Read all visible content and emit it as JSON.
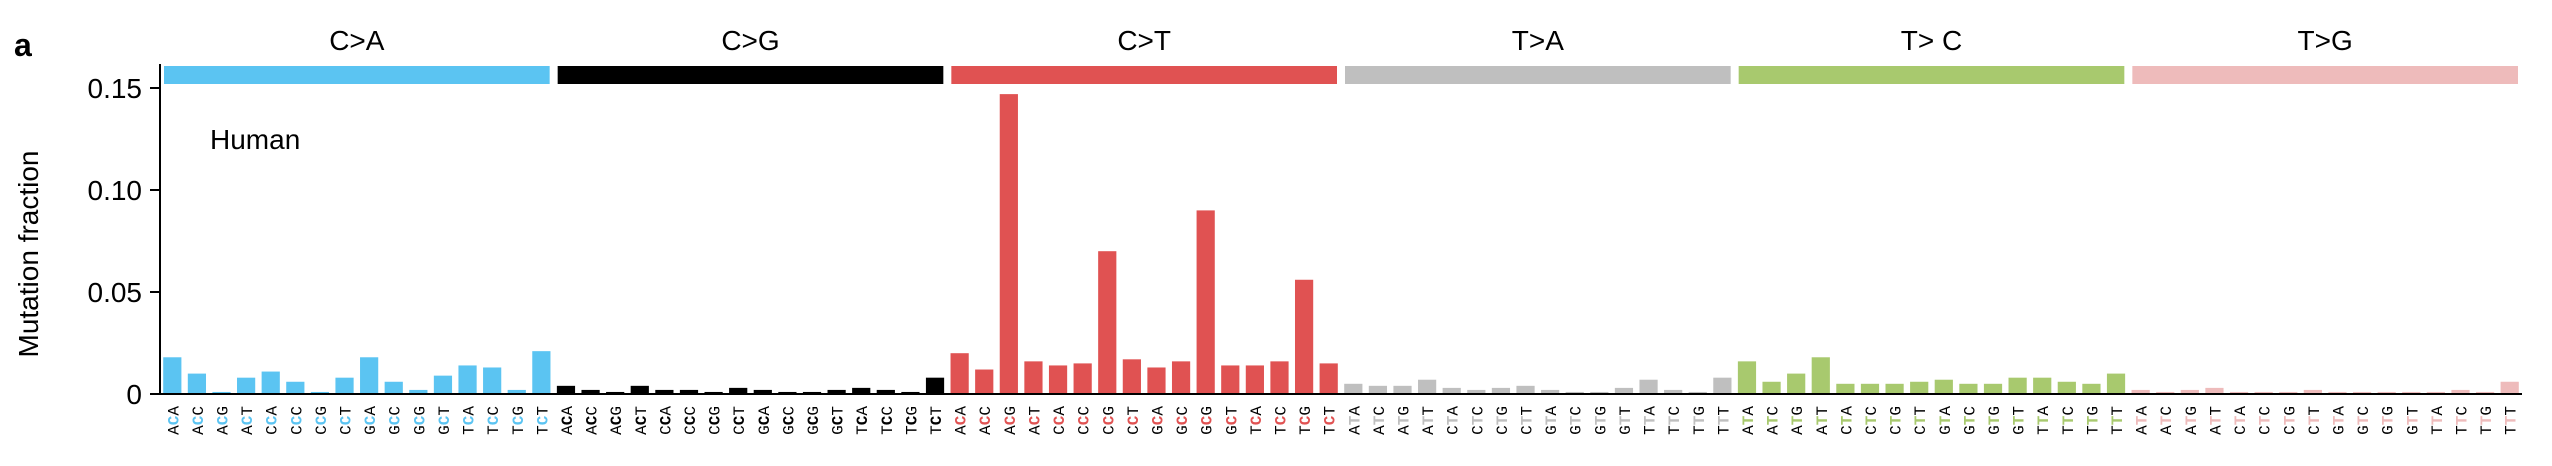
{
  "panel_label": "a",
  "chart_data": {
    "type": "bar",
    "annotation": "Human",
    "ylabel": "Mutation fraction",
    "ylim": [
      0,
      0.16
    ],
    "yticks": [
      0,
      0.05,
      0.1,
      0.15
    ],
    "ytick_labels": [
      "0",
      "0.05",
      "0.10",
      "0.15"
    ],
    "grid": false,
    "colors": {
      "C>A": "#5bc4f2",
      "C>G": "#000000",
      "C>T": "#e05252",
      "T>A": "#bfbfbf",
      "T>C": "#a8c96e",
      "T>G": "#eebbbb"
    },
    "groups": [
      {
        "label": "C>A",
        "key": "C>A",
        "contexts": [
          "ACA",
          "ACC",
          "ACG",
          "ACT",
          "CCA",
          "CCC",
          "CCG",
          "CCT",
          "GCA",
          "GCC",
          "GCG",
          "GCT",
          "TCA",
          "TCC",
          "TCG",
          "TCT"
        ],
        "values": [
          0.018,
          0.01,
          0.001,
          0.008,
          0.011,
          0.006,
          0.001,
          0.008,
          0.018,
          0.006,
          0.002,
          0.009,
          0.014,
          0.013,
          0.002,
          0.021
        ]
      },
      {
        "label": "C>G",
        "key": "C>G",
        "contexts": [
          "ACA",
          "ACC",
          "ACG",
          "ACT",
          "CCA",
          "CCC",
          "CCG",
          "CCT",
          "GCA",
          "GCC",
          "GCG",
          "GCT",
          "TCA",
          "TCC",
          "TCG",
          "TCT"
        ],
        "values": [
          0.004,
          0.002,
          0.001,
          0.004,
          0.002,
          0.002,
          0.001,
          0.003,
          0.002,
          0.001,
          0.001,
          0.002,
          0.003,
          0.002,
          0.001,
          0.008
        ]
      },
      {
        "label": "C>T",
        "key": "C>T",
        "contexts": [
          "ACA",
          "ACC",
          "ACG",
          "ACT",
          "CCA",
          "CCC",
          "CCG",
          "CCT",
          "GCA",
          "GCC",
          "GCG",
          "GCT",
          "TCA",
          "TCC",
          "TCG",
          "TCT"
        ],
        "values": [
          0.02,
          0.012,
          0.147,
          0.016,
          0.014,
          0.015,
          0.07,
          0.017,
          0.013,
          0.016,
          0.09,
          0.014,
          0.014,
          0.016,
          0.056,
          0.015
        ]
      },
      {
        "label": "T>A",
        "key": "T>A",
        "contexts": [
          "ATA",
          "ATC",
          "ATG",
          "ATT",
          "CTA",
          "CTC",
          "CTG",
          "CTT",
          "GTA",
          "GTC",
          "GTG",
          "GTT",
          "TTA",
          "TTC",
          "TTG",
          "TTT"
        ],
        "values": [
          0.005,
          0.004,
          0.004,
          0.007,
          0.003,
          0.002,
          0.003,
          0.004,
          0.002,
          0.001,
          0.001,
          0.003,
          0.007,
          0.002,
          0.001,
          0.008
        ]
      },
      {
        "label": "T> C",
        "key": "T>C",
        "contexts": [
          "ATA",
          "ATC",
          "ATG",
          "ATT",
          "CTA",
          "CTC",
          "CTG",
          "CTT",
          "GTA",
          "GTC",
          "GTG",
          "GTT",
          "TTA",
          "TTC",
          "TTG",
          "TTT"
        ],
        "values": [
          0.016,
          0.006,
          0.01,
          0.018,
          0.005,
          0.005,
          0.005,
          0.006,
          0.007,
          0.005,
          0.005,
          0.008,
          0.008,
          0.006,
          0.005,
          0.01
        ]
      },
      {
        "label": "T>G",
        "key": "T>G",
        "contexts": [
          "ATA",
          "ATC",
          "ATG",
          "ATT",
          "CTA",
          "CTC",
          "CTG",
          "CTT",
          "GTA",
          "GTC",
          "GTG",
          "GTT",
          "TTA",
          "TTC",
          "TTG",
          "TTT"
        ],
        "values": [
          0.002,
          0.001,
          0.002,
          0.003,
          0.001,
          0.001,
          0.001,
          0.002,
          0.001,
          0.001,
          0.001,
          0.001,
          0.001,
          0.002,
          0.001,
          0.006
        ]
      }
    ]
  }
}
